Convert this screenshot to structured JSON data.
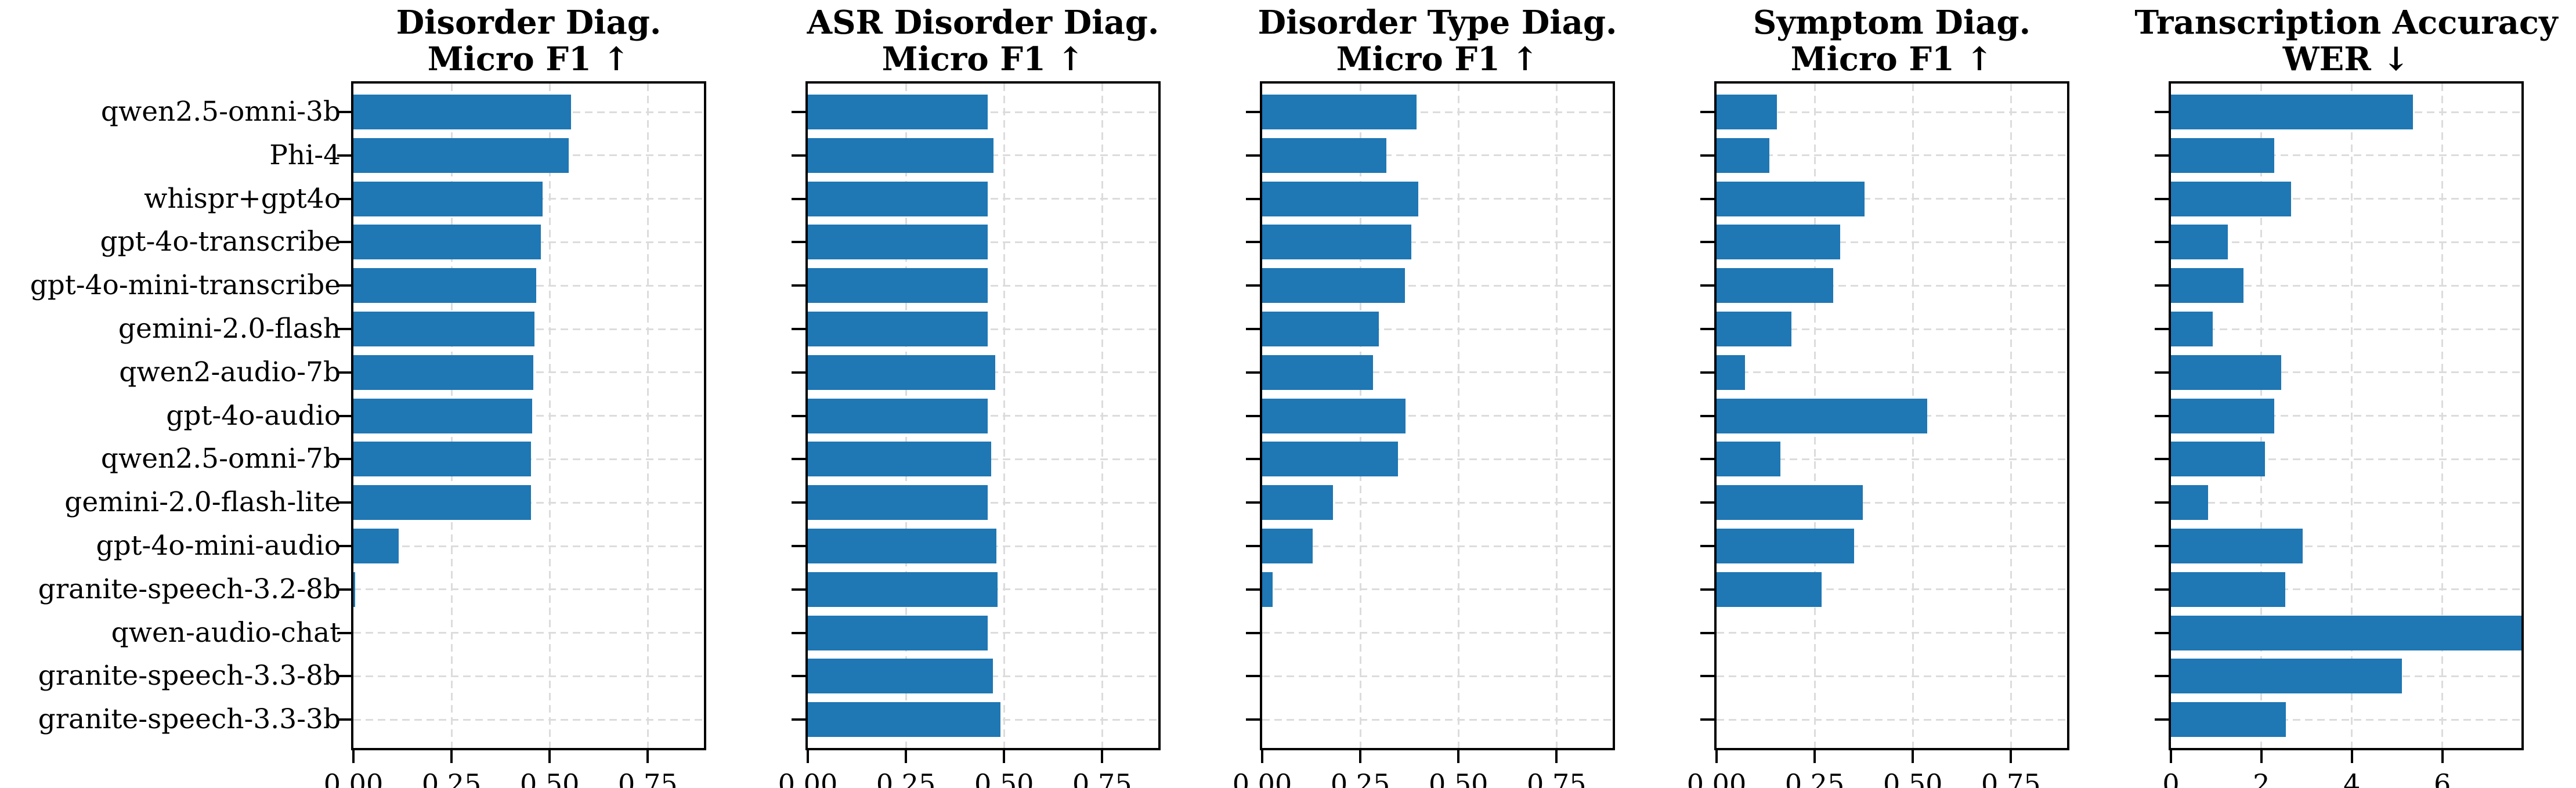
{
  "figure": {
    "background": "#ffffff",
    "bar_color": "#1f77b4",
    "grid_color": "#dcdcdc",
    "axis_color": "#000000"
  },
  "chart_data": {
    "type": "bar",
    "orientation": "horizontal",
    "grid": true,
    "legend": "none",
    "categories": [
      "qwen2.5-omni-3b",
      "Phi-4",
      "whispr+gpt4o",
      "gpt-4o-transcribe",
      "gpt-4o-mini-transcribe",
      "gemini-2.0-flash",
      "qwen2-audio-7b",
      "gpt-4o-audio",
      "qwen2.5-omni-7b",
      "gemini-2.0-flash-lite",
      "gpt-4o-mini-audio",
      "granite-speech-3.2-8b",
      "qwen-audio-chat",
      "granite-speech-3.3-8b",
      "granite-speech-3.3-3b"
    ],
    "series": [
      {
        "name": "Disorder Diag. Micro F1 ↑",
        "title_lines": [
          "Disorder Diag.",
          "Micro F1 ↑"
        ],
        "metric_direction": "higher_is_better",
        "xlim": [
          0,
          0.893
        ],
        "xticks": [
          0,
          0.25,
          0.5,
          0.75
        ],
        "xtick_labels": [
          "0.00",
          "0.25",
          "0.50",
          "0.75"
        ],
        "values": [
          0.554,
          0.549,
          0.482,
          0.477,
          0.466,
          0.461,
          0.459,
          0.456,
          0.453,
          0.452,
          0.115,
          0.004,
          0,
          0,
          0
        ]
      },
      {
        "name": "ASR Disorder Diag. Micro F1 ↑",
        "title_lines": [
          "ASR Disorder Diag.",
          "Micro F1 ↑"
        ],
        "metric_direction": "higher_is_better",
        "xlim": [
          0,
          0.893
        ],
        "xticks": [
          0,
          0.25,
          0.5,
          0.75
        ],
        "xtick_labels": [
          "0.00",
          "0.25",
          "0.50",
          "0.75"
        ],
        "values": [
          0.458,
          0.473,
          0.459,
          0.458,
          0.458,
          0.458,
          0.477,
          0.458,
          0.467,
          0.458,
          0.481,
          0.483,
          0.458,
          0.471,
          0.491
        ]
      },
      {
        "name": "Disorder Type Diag. Micro F1 ↑",
        "title_lines": [
          "Disorder Type Diag.",
          "Micro F1 ↑"
        ],
        "metric_direction": "higher_is_better",
        "xlim": [
          0,
          0.893
        ],
        "xticks": [
          0,
          0.25,
          0.5,
          0.75
        ],
        "xtick_labels": [
          "0.00",
          "0.25",
          "0.50",
          "0.75"
        ],
        "values": [
          0.393,
          0.317,
          0.398,
          0.38,
          0.363,
          0.297,
          0.283,
          0.365,
          0.346,
          0.18,
          0.129,
          0.027,
          0,
          0,
          0
        ]
      },
      {
        "name": "Symptom Diag. Micro F1 ↑",
        "title_lines": [
          "Symptom Diag.",
          "Micro F1 ↑"
        ],
        "metric_direction": "higher_is_better",
        "xlim": [
          0,
          0.893
        ],
        "xticks": [
          0,
          0.25,
          0.5,
          0.75
        ],
        "xtick_labels": [
          "0.00",
          "0.25",
          "0.50",
          "0.75"
        ],
        "values": [
          0.154,
          0.135,
          0.377,
          0.315,
          0.297,
          0.191,
          0.072,
          0.537,
          0.163,
          0.372,
          0.351,
          0.267,
          0,
          0,
          0
        ]
      },
      {
        "name": "Transcription Accuracy WER ↓",
        "title_lines": [
          "Transcription Accuracy",
          "WER ↓"
        ],
        "metric_direction": "lower_is_better",
        "xlim": [
          0,
          7.75
        ],
        "xticks": [
          0,
          2,
          4,
          6
        ],
        "xtick_labels": [
          "0",
          "2",
          "4",
          "6"
        ],
        "values": [
          5.35,
          2.29,
          2.66,
          1.26,
          1.6,
          0.92,
          2.44,
          2.29,
          2.08,
          0.82,
          2.91,
          2.53,
          7.75,
          5.11,
          2.54
        ],
        "note": "qwen-audio-chat bar extends to the right edge of the axes (clipped)"
      }
    ]
  }
}
